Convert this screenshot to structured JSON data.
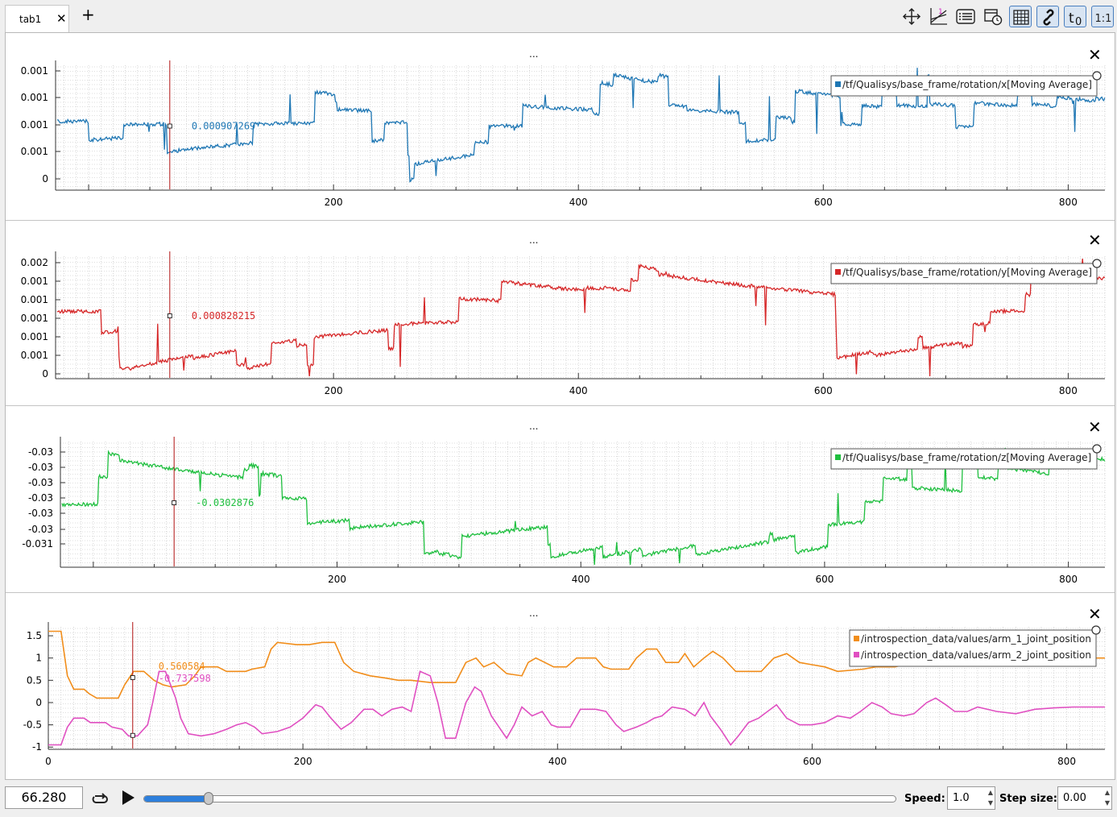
{
  "tabs": [
    {
      "label": "tab1"
    }
  ],
  "toolbar": {
    "icons": [
      "move-icon",
      "axis-ratio-icon",
      "legend-list-icon",
      "calendar-time-icon",
      "grid-icon",
      "link-icon",
      "t-zero-icon",
      "one-to-one-icon"
    ],
    "t0_label": "t0",
    "one_to_one_label": "1:1"
  },
  "colors": {
    "x_series": "#1f77b4",
    "y_series": "#d62728",
    "z_series": "#1fbf3f",
    "arm1": "#f18d1a",
    "arm2": "#e04fc1",
    "cursor": "#b01010",
    "slider": "#2d7fdc"
  },
  "panels": [
    {
      "title": "...",
      "chart_data": {
        "type": "line",
        "series": [
          {
            "name": "/tf/Qualisys/base_frame/rotation/x[Moving Average]",
            "color": "#1f77b4"
          }
        ],
        "x_ticks": [
          200,
          400,
          600,
          800
        ],
        "y_ticks": [
          "0.001",
          "0.001",
          "0.001",
          "0.001",
          "0"
        ],
        "xlim": [
          0,
          830
        ],
        "cursor_x": 66.28,
        "cursor_values": [
          "0.000907269"
        ]
      }
    },
    {
      "title": "...",
      "chart_data": {
        "type": "line",
        "series": [
          {
            "name": "/tf/Qualisys/base_frame/rotation/y[Moving Average]",
            "color": "#d62728"
          }
        ],
        "x_ticks": [
          200,
          400,
          600,
          800
        ],
        "y_ticks": [
          "0.002",
          "0.001",
          "0.001",
          "0.001",
          "0.001",
          "0.001",
          "0"
        ],
        "xlim": [
          0,
          830
        ],
        "cursor_x": 66.28,
        "cursor_values": [
          "0.000828215"
        ]
      }
    },
    {
      "title": "...",
      "chart_data": {
        "type": "line",
        "series": [
          {
            "name": "/tf/Qualisys/base_frame/rotation/z[Moving Average]",
            "color": "#1fbf3f"
          }
        ],
        "x_ticks": [
          200,
          400,
          600,
          800
        ],
        "y_ticks": [
          "-0.03",
          "-0.03",
          "-0.03",
          "-0.03",
          "-0.03",
          "-0.03",
          "-0.031"
        ],
        "xlim": [
          0,
          830
        ],
        "cursor_x": 66.28,
        "cursor_values": [
          "-0.0302876"
        ]
      }
    },
    {
      "title": "...",
      "chart_data": {
        "type": "line",
        "series": [
          {
            "name": "/introspection_data/values/arm_1_joint_position",
            "color": "#f18d1a",
            "points": [
              [
                0,
                1.6
              ],
              [
                10,
                1.6
              ],
              [
                15,
                0.6
              ],
              [
                20,
                0.3
              ],
              [
                28,
                0.3
              ],
              [
                32,
                0.2
              ],
              [
                38,
                0.1
              ],
              [
                55,
                0.1
              ],
              [
                60,
                0.4
              ],
              [
                67,
                0.7
              ],
              [
                75,
                0.7
              ],
              [
                83,
                0.5
              ],
              [
                90,
                0.4
              ],
              [
                97,
                0.35
              ],
              [
                108,
                0.4
              ],
              [
                115,
                0.6
              ],
              [
                120,
                0.8
              ],
              [
                133,
                0.8
              ],
              [
                140,
                0.7
              ],
              [
                155,
                0.7
              ],
              [
                160,
                0.75
              ],
              [
                170,
                0.8
              ],
              [
                175,
                1.2
              ],
              [
                180,
                1.35
              ],
              [
                195,
                1.3
              ],
              [
                205,
                1.3
              ],
              [
                215,
                1.35
              ],
              [
                225,
                1.35
              ],
              [
                232,
                0.9
              ],
              [
                240,
                0.7
              ],
              [
                253,
                0.6
              ],
              [
                265,
                0.55
              ],
              [
                275,
                0.5
              ],
              [
                285,
                0.5
              ],
              [
                300,
                0.45
              ],
              [
                320,
                0.45
              ],
              [
                328,
                0.9
              ],
              [
                336,
                1.0
              ],
              [
                342,
                0.8
              ],
              [
                350,
                0.9
              ],
              [
                360,
                0.65
              ],
              [
                372,
                0.6
              ],
              [
                377,
                0.9
              ],
              [
                383,
                1.0
              ],
              [
                390,
                0.9
              ],
              [
                397,
                0.8
              ],
              [
                407,
                0.8
              ],
              [
                415,
                1.0
              ],
              [
                430,
                1.0
              ],
              [
                436,
                0.8
              ],
              [
                442,
                0.75
              ],
              [
                456,
                0.75
              ],
              [
                462,
                1.0
              ],
              [
                470,
                1.2
              ],
              [
                478,
                1.2
              ],
              [
                485,
                0.9
              ],
              [
                495,
                0.9
              ],
              [
                500,
                1.1
              ],
              [
                507,
                0.8
              ],
              [
                515,
                1.0
              ],
              [
                522,
                1.15
              ],
              [
                530,
                1.0
              ],
              [
                540,
                0.7
              ],
              [
                560,
                0.7
              ],
              [
                570,
                1.0
              ],
              [
                580,
                1.1
              ],
              [
                590,
                0.9
              ],
              [
                600,
                0.85
              ],
              [
                610,
                0.8
              ],
              [
                620,
                0.7
              ],
              [
                640,
                0.75
              ],
              [
                650,
                0.8
              ],
              [
                665,
                0.8
              ],
              [
                680,
                0.9
              ],
              [
                690,
                1.0
              ],
              [
                700,
                1.1
              ],
              [
                710,
                1.2
              ],
              [
                718,
                1.1
              ],
              [
                730,
                1.0
              ],
              [
                745,
                0.95
              ],
              [
                760,
                0.9
              ],
              [
                780,
                1.0
              ],
              [
                800,
                1.0
              ],
              [
                820,
                1.0
              ],
              [
                830,
                1.0
              ]
            ]
          },
          {
            "name": "/introspection_data/values/arm_2_joint_position",
            "color": "#e04fc1",
            "points": [
              [
                0,
                -0.95
              ],
              [
                10,
                -0.95
              ],
              [
                15,
                -0.55
              ],
              [
                20,
                -0.35
              ],
              [
                28,
                -0.35
              ],
              [
                33,
                -0.45
              ],
              [
                45,
                -0.45
              ],
              [
                50,
                -0.55
              ],
              [
                58,
                -0.6
              ],
              [
                63,
                -0.75
              ],
              [
                70,
                -0.75
              ],
              [
                78,
                -0.5
              ],
              [
                82,
                0.0
              ],
              [
                87,
                0.7
              ],
              [
                92,
                0.7
              ],
              [
                100,
                0.1
              ],
              [
                104,
                -0.35
              ],
              [
                110,
                -0.7
              ],
              [
                120,
                -0.75
              ],
              [
                130,
                -0.7
              ],
              [
                140,
                -0.6
              ],
              [
                148,
                -0.5
              ],
              [
                155,
                -0.45
              ],
              [
                162,
                -0.55
              ],
              [
                168,
                -0.7
              ],
              [
                180,
                -0.65
              ],
              [
                190,
                -0.55
              ],
              [
                200,
                -0.35
              ],
              [
                210,
                -0.05
              ],
              [
                215,
                -0.1
              ],
              [
                222,
                -0.35
              ],
              [
                230,
                -0.6
              ],
              [
                238,
                -0.45
              ],
              [
                248,
                -0.15
              ],
              [
                255,
                -0.15
              ],
              [
                262,
                -0.3
              ],
              [
                270,
                -0.15
              ],
              [
                278,
                -0.1
              ],
              [
                285,
                -0.2
              ],
              [
                292,
                0.7
              ],
              [
                300,
                0.6
              ],
              [
                306,
                0.0
              ],
              [
                312,
                -0.8
              ],
              [
                320,
                -0.8
              ],
              [
                328,
                0.0
              ],
              [
                335,
                0.35
              ],
              [
                340,
                0.25
              ],
              [
                348,
                -0.3
              ],
              [
                360,
                -0.8
              ],
              [
                366,
                -0.5
              ],
              [
                372,
                -0.1
              ],
              [
                380,
                -0.3
              ],
              [
                388,
                -0.2
              ],
              [
                395,
                -0.5
              ],
              [
                400,
                -0.55
              ],
              [
                410,
                -0.55
              ],
              [
                418,
                -0.15
              ],
              [
                430,
                -0.15
              ],
              [
                438,
                -0.2
              ],
              [
                446,
                -0.5
              ],
              [
                452,
                -0.65
              ],
              [
                462,
                -0.55
              ],
              [
                470,
                -0.45
              ],
              [
                476,
                -0.35
              ],
              [
                482,
                -0.3
              ],
              [
                490,
                -0.1
              ],
              [
                500,
                -0.15
              ],
              [
                508,
                -0.3
              ],
              [
                515,
                0.0
              ],
              [
                520,
                -0.3
              ],
              [
                528,
                -0.6
              ],
              [
                536,
                -0.95
              ],
              [
                542,
                -0.75
              ],
              [
                550,
                -0.45
              ],
              [
                558,
                -0.35
              ],
              [
                565,
                -0.2
              ],
              [
                572,
                -0.05
              ],
              [
                580,
                -0.35
              ],
              [
                590,
                -0.5
              ],
              [
                600,
                -0.5
              ],
              [
                610,
                -0.45
              ],
              [
                620,
                -0.3
              ],
              [
                630,
                -0.35
              ],
              [
                638,
                -0.2
              ],
              [
                647,
                0.0
              ],
              [
                655,
                -0.1
              ],
              [
                662,
                -0.25
              ],
              [
                672,
                -0.3
              ],
              [
                680,
                -0.25
              ],
              [
                690,
                0.0
              ],
              [
                697,
                0.1
              ],
              [
                705,
                -0.05
              ],
              [
                712,
                -0.2
              ],
              [
                722,
                -0.2
              ],
              [
                730,
                -0.1
              ],
              [
                745,
                -0.2
              ],
              [
                760,
                -0.25
              ],
              [
                775,
                -0.15
              ],
              [
                790,
                -0.12
              ],
              [
                805,
                -0.1
              ],
              [
                830,
                -0.1
              ]
            ]
          }
        ],
        "x_ticks": [
          0,
          200,
          400,
          600,
          800
        ],
        "y_ticks": [
          "1.5",
          "1",
          "0.5",
          "0",
          "-0.5",
          "-1"
        ],
        "ylim": [
          -1.05,
          1.7
        ],
        "xlim": [
          0,
          830
        ],
        "cursor_x": 66.28,
        "cursor_values": [
          "0.560584",
          "-0.737598"
        ]
      }
    }
  ],
  "player": {
    "time": "66.280",
    "progress_fraction": 0.0865,
    "speed_label": "Speed:",
    "speed_value": "1.0",
    "step_label": "Step size:",
    "step_value": "0.00"
  }
}
